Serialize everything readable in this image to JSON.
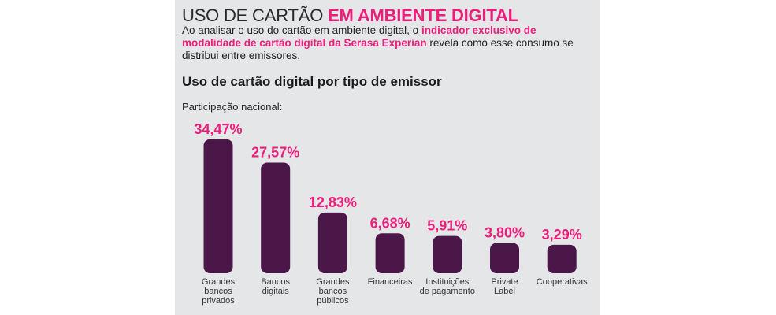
{
  "header": {
    "title_light": "USO DE CARTÃO ",
    "title_bold": "EM AMBIENTE DIGITAL",
    "intro_part1": "Ao analisar o uso do cartão em ambiente digital, o ",
    "intro_highlight": "indicador exclusivo de modalidade de cartão digital da Serasa Experian",
    "intro_part2": " revela como esse consumo se distribui entre emissores."
  },
  "colors": {
    "accent": "#ec1e7b",
    "bar": "#4a1748",
    "panel": "#e5e6e8"
  },
  "chart_data": {
    "type": "bar",
    "title": "Uso de cartão digital por tipo de emissor",
    "subtitle": "Participação nacional:",
    "xlabel": "",
    "ylabel": "",
    "unit": "%",
    "categories": [
      [
        "Grandes",
        "bancos",
        "privados"
      ],
      [
        "Bancos",
        "digitais"
      ],
      [
        "Grandes",
        "bancos",
        "públicos"
      ],
      [
        "Financeiras"
      ],
      [
        "Instituições",
        "de pagamento"
      ],
      [
        "Private",
        "Label"
      ],
      [
        "Cooperativas"
      ]
    ],
    "values": [
      34.47,
      27.57,
      12.83,
      6.68,
      5.91,
      3.8,
      3.29
    ],
    "value_labels": [
      "34,47%",
      "27,57%",
      "12,83%",
      "6,68%",
      "5,91%",
      "3,80%",
      "3,29%"
    ],
    "grid": false,
    "legend": "none"
  }
}
